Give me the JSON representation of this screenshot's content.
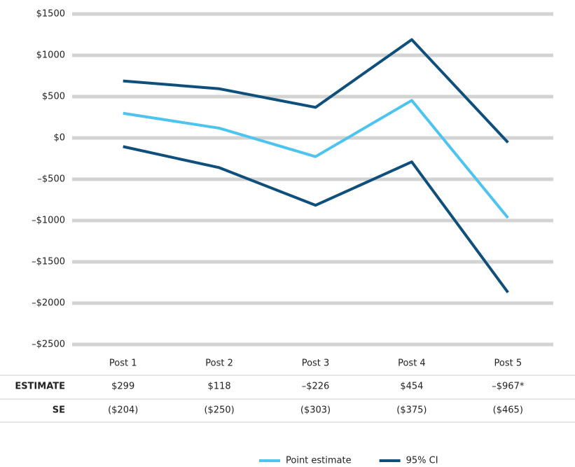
{
  "chart_data": {
    "type": "line",
    "categories": [
      "Post 1",
      "Post 2",
      "Post 3",
      "Post 4",
      "Post 5"
    ],
    "series": [
      {
        "name": "Point estimate",
        "color": "#4cc4ef",
        "values": [
          299,
          118,
          -226,
          454,
          -967
        ],
        "value_labels": [
          "$299",
          "$118",
          "–$226",
          "$454",
          "–$967*"
        ]
      },
      {
        "name": "95% CI",
        "color": "#0e4f7c",
        "values": [
          690,
          595,
          370,
          1190,
          -55
        ]
      },
      {
        "color": "#0e4f7c",
        "values": [
          -105,
          -360,
          -815,
          -290,
          -1870
        ]
      }
    ],
    "ylim": [
      -2500,
      1500
    ],
    "yticks": [
      {
        "value": -2500,
        "label": "–$2500"
      },
      {
        "value": -2000,
        "label": "–$2000"
      },
      {
        "value": -1500,
        "label": "–$1500"
      },
      {
        "value": -1000,
        "label": "–$1000"
      },
      {
        "value": -500,
        "label": "–$500"
      },
      {
        "value": 0,
        "label": "$0"
      },
      {
        "value": 500,
        "label": "$500"
      },
      {
        "value": 1000,
        "label": "$1000"
      },
      {
        "value": 1500,
        "label": "$1500"
      }
    ],
    "grid": true,
    "table": {
      "row_labels": [
        "ESTIMATE",
        "SE"
      ],
      "se": [
        "($204)",
        "($250)",
        "($303)",
        "($375)",
        "($465)"
      ]
    },
    "legend": "bottom"
  }
}
